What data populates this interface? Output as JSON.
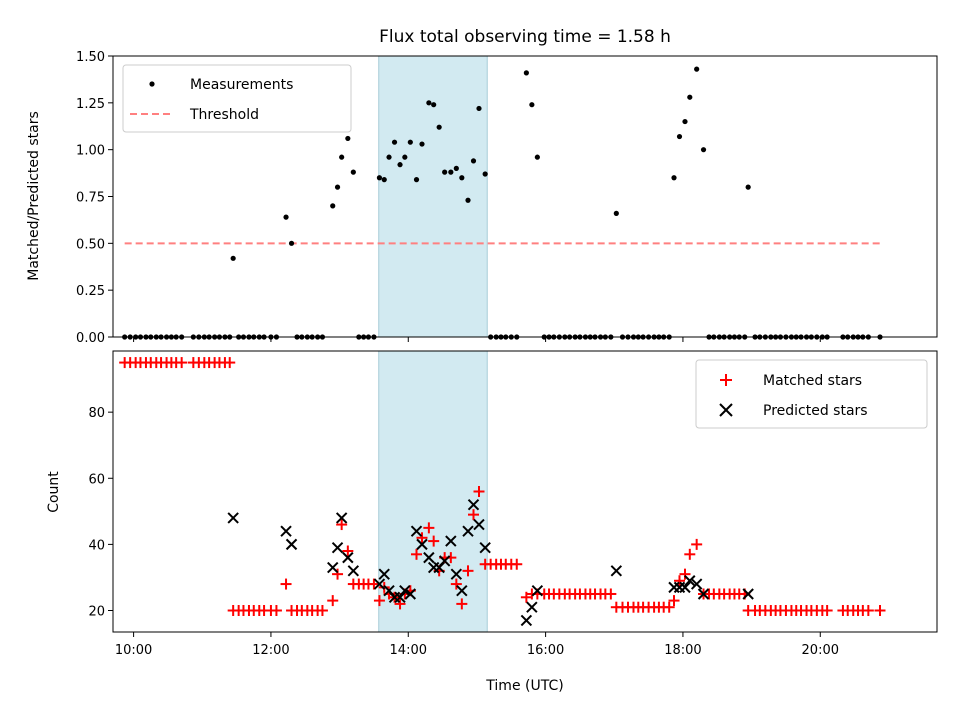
{
  "chart_data": [
    {
      "type": "scatter",
      "title": "Flux total observing time = 1.58 h",
      "xlabel": "",
      "ylabel": "Matched/Predicted stars",
      "xlim": [
        9.7,
        21.7
      ],
      "ylim": [
        0,
        1.5
      ],
      "yticks": [
        0.0,
        0.25,
        0.5,
        0.75,
        1.0,
        1.25,
        1.5
      ],
      "ytick_labels": [
        "0.00",
        "0.25",
        "0.50",
        "0.75",
        "1.00",
        "1.25",
        "1.50"
      ],
      "shaded_span": [
        13.57,
        15.15
      ],
      "legend": {
        "position": "top-left",
        "entries": [
          "Measurements",
          "Threshold"
        ]
      },
      "threshold": {
        "name": "Threshold",
        "value": 0.5,
        "x_range": [
          9.87,
          20.87
        ],
        "color": "#ff8080"
      },
      "measurements": {
        "name": "Measurements",
        "color": "#000000",
        "points": [
          [
            11.45,
            0.42
          ],
          [
            12.22,
            0.64
          ],
          [
            12.3,
            0.5
          ],
          [
            12.9,
            0.7
          ],
          [
            12.97,
            0.8
          ],
          [
            13.03,
            0.96
          ],
          [
            13.12,
            1.06
          ],
          [
            13.2,
            0.88
          ],
          [
            13.58,
            0.85
          ],
          [
            13.65,
            0.84
          ],
          [
            13.72,
            0.96
          ],
          [
            13.8,
            1.04
          ],
          [
            13.88,
            0.92
          ],
          [
            13.95,
            0.96
          ],
          [
            14.03,
            1.04
          ],
          [
            14.12,
            0.84
          ],
          [
            14.2,
            1.03
          ],
          [
            14.3,
            1.25
          ],
          [
            14.37,
            1.24
          ],
          [
            14.45,
            1.12
          ],
          [
            14.53,
            0.88
          ],
          [
            14.62,
            0.88
          ],
          [
            14.7,
            0.9
          ],
          [
            14.78,
            0.85
          ],
          [
            14.87,
            0.73
          ],
          [
            14.95,
            0.94
          ],
          [
            15.03,
            1.22
          ],
          [
            15.12,
            0.87
          ],
          [
            15.72,
            1.41
          ],
          [
            15.8,
            1.24
          ],
          [
            15.88,
            0.96
          ],
          [
            17.03,
            0.66
          ],
          [
            17.87,
            0.85
          ],
          [
            17.95,
            1.07
          ],
          [
            18.03,
            1.15
          ],
          [
            18.1,
            1.28
          ],
          [
            18.2,
            1.43
          ],
          [
            18.3,
            1.0
          ],
          [
            18.95,
            0.8
          ]
        ],
        "zero_points": [
          9.87,
          9.95,
          10.03,
          10.1,
          10.18,
          10.25,
          10.33,
          10.4,
          10.48,
          10.55,
          10.62,
          10.7,
          10.87,
          10.95,
          11.03,
          11.1,
          11.18,
          11.25,
          11.33,
          11.4,
          11.53,
          11.6,
          11.68,
          11.75,
          11.83,
          11.9,
          12.0,
          12.08,
          12.38,
          12.45,
          12.53,
          12.6,
          12.68,
          12.75,
          13.28,
          13.35,
          13.42,
          13.5,
          15.2,
          15.28,
          15.35,
          15.42,
          15.5,
          15.58,
          15.98,
          16.05,
          16.12,
          16.2,
          16.28,
          16.35,
          16.43,
          16.5,
          16.58,
          16.65,
          16.72,
          16.8,
          16.87,
          16.95,
          17.12,
          17.2,
          17.28,
          17.35,
          17.42,
          17.5,
          17.58,
          17.65,
          17.72,
          17.8,
          18.38,
          18.45,
          18.53,
          18.6,
          18.68,
          18.75,
          18.82,
          18.9,
          19.05,
          19.12,
          19.2,
          19.28,
          19.35,
          19.42,
          19.5,
          19.58,
          19.65,
          19.72,
          19.8,
          19.87,
          19.95,
          20.03,
          20.1,
          20.33,
          20.4,
          20.48,
          20.55,
          20.62,
          20.7,
          20.87
        ]
      }
    },
    {
      "type": "scatter",
      "title": "",
      "xlabel": "Time (UTC)",
      "ylabel": "Count",
      "xlim": [
        9.7,
        21.7
      ],
      "ylim": [
        13.5,
        98.5
      ],
      "yticks": [
        20,
        40,
        60,
        80
      ],
      "ytick_labels": [
        "20",
        "40",
        "60",
        "80"
      ],
      "xticks": [
        10,
        12,
        14,
        16,
        18,
        20
      ],
      "xtick_labels": [
        "10:00",
        "12:00",
        "14:00",
        "16:00",
        "18:00",
        "20:00"
      ],
      "shaded_span": [
        13.57,
        15.15
      ],
      "legend": {
        "position": "top-right",
        "entries": [
          "Matched stars",
          "Predicted stars"
        ]
      },
      "series": [
        {
          "name": "Matched stars",
          "marker": "+",
          "color": "#ff0000",
          "points": [
            [
              9.87,
              95
            ],
            [
              9.95,
              95
            ],
            [
              10.03,
              95
            ],
            [
              10.1,
              95
            ],
            [
              10.18,
              95
            ],
            [
              10.25,
              95
            ],
            [
              10.33,
              95
            ],
            [
              10.4,
              95
            ],
            [
              10.48,
              95
            ],
            [
              10.55,
              95
            ],
            [
              10.62,
              95
            ],
            [
              10.7,
              95
            ],
            [
              10.87,
              95
            ],
            [
              10.95,
              95
            ],
            [
              11.03,
              95
            ],
            [
              11.1,
              95
            ],
            [
              11.18,
              95
            ],
            [
              11.25,
              95
            ],
            [
              11.33,
              95
            ],
            [
              11.4,
              95
            ],
            [
              11.45,
              20
            ],
            [
              11.53,
              20
            ],
            [
              11.6,
              20
            ],
            [
              11.68,
              20
            ],
            [
              11.75,
              20
            ],
            [
              11.83,
              20
            ],
            [
              11.9,
              20
            ],
            [
              12.0,
              20
            ],
            [
              12.08,
              20
            ],
            [
              12.22,
              28
            ],
            [
              12.3,
              20
            ],
            [
              12.38,
              20
            ],
            [
              12.45,
              20
            ],
            [
              12.53,
              20
            ],
            [
              12.6,
              20
            ],
            [
              12.68,
              20
            ],
            [
              12.75,
              20
            ],
            [
              12.9,
              23
            ],
            [
              12.97,
              31
            ],
            [
              13.03,
              46
            ],
            [
              13.12,
              38
            ],
            [
              13.2,
              28
            ],
            [
              13.28,
              28
            ],
            [
              13.35,
              28
            ],
            [
              13.42,
              28
            ],
            [
              13.5,
              28
            ],
            [
              13.58,
              23
            ],
            [
              13.65,
              27
            ],
            [
              13.72,
              25
            ],
            [
              13.8,
              24
            ],
            [
              13.88,
              22
            ],
            [
              13.95,
              25
            ],
            [
              14.03,
              26
            ],
            [
              14.12,
              37
            ],
            [
              14.2,
              42
            ],
            [
              14.3,
              45
            ],
            [
              14.37,
              41
            ],
            [
              14.45,
              32
            ],
            [
              14.53,
              36
            ],
            [
              14.62,
              36
            ],
            [
              14.7,
              28
            ],
            [
              14.78,
              22
            ],
            [
              14.87,
              32
            ],
            [
              14.95,
              49
            ],
            [
              15.03,
              56
            ],
            [
              15.12,
              34
            ],
            [
              15.2,
              34
            ],
            [
              15.28,
              34
            ],
            [
              15.35,
              34
            ],
            [
              15.42,
              34
            ],
            [
              15.5,
              34
            ],
            [
              15.58,
              34
            ],
            [
              15.72,
              24
            ],
            [
              15.8,
              25
            ],
            [
              15.88,
              25
            ],
            [
              15.98,
              25
            ],
            [
              16.05,
              25
            ],
            [
              16.12,
              25
            ],
            [
              16.2,
              25
            ],
            [
              16.28,
              25
            ],
            [
              16.35,
              25
            ],
            [
              16.43,
              25
            ],
            [
              16.5,
              25
            ],
            [
              16.58,
              25
            ],
            [
              16.65,
              25
            ],
            [
              16.72,
              25
            ],
            [
              16.8,
              25
            ],
            [
              16.87,
              25
            ],
            [
              16.95,
              25
            ],
            [
              17.03,
              21
            ],
            [
              17.12,
              21
            ],
            [
              17.2,
              21
            ],
            [
              17.28,
              21
            ],
            [
              17.35,
              21
            ],
            [
              17.42,
              21
            ],
            [
              17.5,
              21
            ],
            [
              17.58,
              21
            ],
            [
              17.65,
              21
            ],
            [
              17.72,
              21
            ],
            [
              17.8,
              21
            ],
            [
              17.87,
              23
            ],
            [
              17.95,
              29
            ],
            [
              18.03,
              31
            ],
            [
              18.1,
              37
            ],
            [
              18.2,
              40
            ],
            [
              18.3,
              25
            ],
            [
              18.38,
              25
            ],
            [
              18.45,
              25
            ],
            [
              18.53,
              25
            ],
            [
              18.6,
              25
            ],
            [
              18.68,
              25
            ],
            [
              18.75,
              25
            ],
            [
              18.82,
              25
            ],
            [
              18.9,
              25
            ],
            [
              18.95,
              20
            ],
            [
              19.05,
              20
            ],
            [
              19.12,
              20
            ],
            [
              19.2,
              20
            ],
            [
              19.28,
              20
            ],
            [
              19.35,
              20
            ],
            [
              19.42,
              20
            ],
            [
              19.5,
              20
            ],
            [
              19.58,
              20
            ],
            [
              19.65,
              20
            ],
            [
              19.72,
              20
            ],
            [
              19.8,
              20
            ],
            [
              19.87,
              20
            ],
            [
              19.95,
              20
            ],
            [
              20.03,
              20
            ],
            [
              20.1,
              20
            ],
            [
              20.33,
              20
            ],
            [
              20.4,
              20
            ],
            [
              20.48,
              20
            ],
            [
              20.55,
              20
            ],
            [
              20.62,
              20
            ],
            [
              20.7,
              20
            ],
            [
              20.87,
              20
            ]
          ]
        },
        {
          "name": "Predicted stars",
          "marker": "x",
          "color": "#000000",
          "points": [
            [
              11.45,
              48
            ],
            [
              12.22,
              44
            ],
            [
              12.3,
              40
            ],
            [
              12.9,
              33
            ],
            [
              12.97,
              39
            ],
            [
              13.03,
              48
            ],
            [
              13.12,
              36
            ],
            [
              13.2,
              32
            ],
            [
              13.58,
              28
            ],
            [
              13.65,
              31
            ],
            [
              13.72,
              26
            ],
            [
              13.8,
              24
            ],
            [
              13.88,
              24
            ],
            [
              13.95,
              26
            ],
            [
              14.03,
              25
            ],
            [
              14.12,
              44
            ],
            [
              14.2,
              40
            ],
            [
              14.3,
              36
            ],
            [
              14.37,
              33
            ],
            [
              14.45,
              33
            ],
            [
              14.53,
              35
            ],
            [
              14.62,
              41
            ],
            [
              14.7,
              31
            ],
            [
              14.78,
              26
            ],
            [
              14.87,
              44
            ],
            [
              14.95,
              52
            ],
            [
              15.03,
              46
            ],
            [
              15.12,
              39
            ],
            [
              15.72,
              17
            ],
            [
              15.8,
              21
            ],
            [
              15.88,
              26
            ],
            [
              17.03,
              32
            ],
            [
              17.87,
              27
            ],
            [
              17.95,
              27
            ],
            [
              18.03,
              27
            ],
            [
              18.1,
              29
            ],
            [
              18.2,
              28
            ],
            [
              18.3,
              25
            ],
            [
              18.95,
              25
            ]
          ]
        }
      ]
    }
  ]
}
